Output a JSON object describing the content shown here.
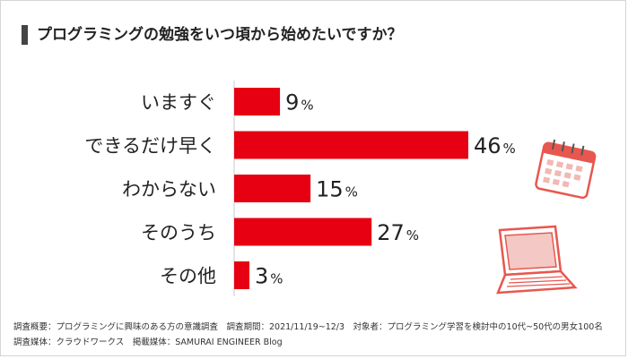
{
  "title": "プログラミングの勉強をいつ頃から始めたいですか？",
  "chart_data": {
    "type": "bar",
    "orientation": "horizontal",
    "categories": [
      "いますぐ",
      "できるだけ早く",
      "わからない",
      "そのうち",
      "その他"
    ],
    "values": [
      9,
      46,
      15,
      27,
      3
    ],
    "unit": "%",
    "bar_color": "#e60012",
    "xlim": [
      0,
      46
    ]
  },
  "footnotes": {
    "line1": "調査概要：プログラミングに興味のある方の意識調査　調査期間：2021/11/19~12/3　対象者：プログラミング学習を検討中の10代~50代の男女100名",
    "line2": "調査媒体：クラウドワークス　掲載媒体：SAMURAI ENGINEER Blog"
  },
  "decorations": {
    "calendar_icon_color": "#e8574f",
    "laptop_icon_color": "#e8574f"
  }
}
